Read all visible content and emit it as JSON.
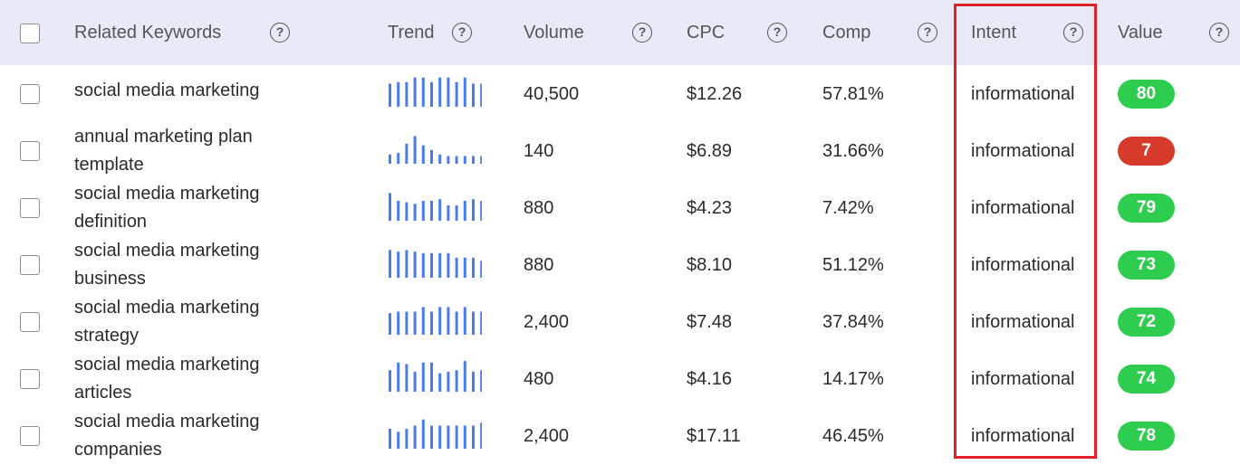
{
  "columns": {
    "keyword": "Related Keywords",
    "trend": "Trend",
    "volume": "Volume",
    "cpc": "CPC",
    "comp": "Comp",
    "intent": "Intent",
    "value": "Value"
  },
  "help_glyph": "?",
  "colors": {
    "bar": "#4a7de8",
    "good": "#2fcd4f",
    "bad": "#d53a2b",
    "highlight": "#e0202a"
  },
  "rows": [
    {
      "kw1": "social media marketing",
      "kw2": "",
      "volume": "40,500",
      "cpc": "$12.26",
      "comp": "57.81%",
      "intent": "informational",
      "value": "80",
      "trend": [
        0.75,
        0.8,
        0.8,
        0.95,
        0.95,
        0.8,
        0.95,
        0.95,
        0.8,
        0.95,
        0.75,
        0.75
      ]
    },
    {
      "kw1": "annual marketing plan",
      "kw2": "template",
      "volume": "140",
      "cpc": "$6.89",
      "comp": "31.66%",
      "intent": "informational",
      "value": "7",
      "trend": [
        0.3,
        0.35,
        0.65,
        0.9,
        0.6,
        0.45,
        0.3,
        0.25,
        0.25,
        0.25,
        0.25,
        0.25
      ]
    },
    {
      "kw1": "social media marketing",
      "kw2": "definition",
      "volume": "880",
      "cpc": "$4.23",
      "comp": "7.42%",
      "intent": "informational",
      "value": "79",
      "trend": [
        0.9,
        0.65,
        0.6,
        0.55,
        0.65,
        0.65,
        0.7,
        0.5,
        0.5,
        0.65,
        0.7,
        0.65
      ]
    },
    {
      "kw1": "social media marketing",
      "kw2": "business",
      "volume": "880",
      "cpc": "$8.10",
      "comp": "51.12%",
      "intent": "informational",
      "value": "73",
      "trend": [
        0.9,
        0.85,
        0.9,
        0.85,
        0.8,
        0.8,
        0.8,
        0.8,
        0.65,
        0.65,
        0.65,
        0.55
      ]
    },
    {
      "kw1": "social media marketing",
      "kw2": "strategy",
      "volume": "2,400",
      "cpc": "$7.48",
      "comp": "37.84%",
      "intent": "informational",
      "value": "72",
      "trend": [
        0.7,
        0.75,
        0.75,
        0.75,
        0.9,
        0.75,
        0.9,
        0.9,
        0.75,
        0.9,
        0.75,
        0.75
      ]
    },
    {
      "kw1": "social media marketing",
      "kw2": "articles",
      "volume": "480",
      "cpc": "$4.16",
      "comp": "14.17%",
      "intent": "informational",
      "value": "74",
      "trend": [
        0.7,
        0.95,
        0.9,
        0.65,
        0.95,
        0.95,
        0.6,
        0.65,
        0.7,
        1.0,
        0.65,
        0.7
      ]
    },
    {
      "kw1": "social media marketing",
      "kw2": "companies",
      "volume": "2,400",
      "cpc": "$17.11",
      "comp": "46.45%",
      "intent": "informational",
      "value": "78",
      "trend": [
        0.65,
        0.55,
        0.65,
        0.75,
        0.95,
        0.75,
        0.75,
        0.75,
        0.75,
        0.75,
        0.75,
        0.85
      ]
    }
  ]
}
